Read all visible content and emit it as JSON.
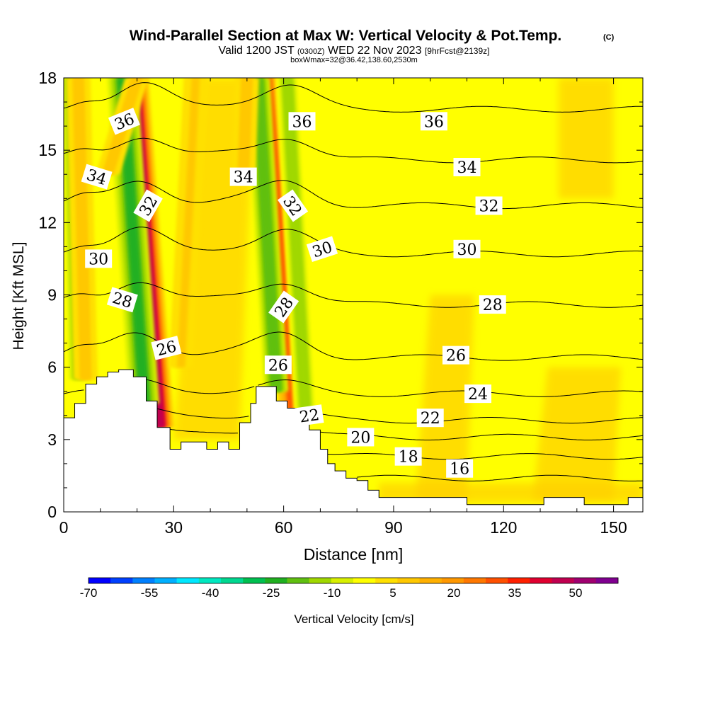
{
  "chart_data": {
    "type": "heatmap",
    "title": "Wind-Parallel Section at Max W: Vertical Velocity & Pot.Temp.",
    "title_mark": "(C)",
    "subtitle_parts": [
      "Valid 1200 JST",
      "(0300Z)",
      "WED 22 Nov 2023",
      "[9hrFcst@2139z]"
    ],
    "subtitle2": "boxWmax=32@36.42,138.60,2530m",
    "xlabel": "Distance [nm]",
    "ylabel": "Height [Kft MSL]",
    "xlim": [
      0,
      158
    ],
    "ylim": [
      0,
      18
    ],
    "x_ticks": [
      0,
      30,
      60,
      90,
      120,
      150
    ],
    "y_ticks": [
      0,
      3,
      6,
      9,
      12,
      15,
      18
    ],
    "colorbar": {
      "label": "Vertical Velocity [cm/s]",
      "tick_labels": [
        "-70",
        "-55",
        "-40",
        "-25",
        "-10",
        "5",
        "20",
        "35",
        "50"
      ],
      "colors": [
        "#0000ff",
        "#0040ff",
        "#0080ff",
        "#00b0ff",
        "#00e8ff",
        "#00e8c0",
        "#00d890",
        "#00c050",
        "#20b020",
        "#60c010",
        "#a0d800",
        "#d8f000",
        "#ffff00",
        "#ffe000",
        "#ffc800",
        "#ffb000",
        "#ff9800",
        "#ff7800",
        "#ff5000",
        "#ff2000",
        "#e00030",
        "#c00050",
        "#a00070",
        "#800090"
      ]
    },
    "terrain_profile": {
      "x": [
        0,
        3,
        3,
        6,
        6,
        9,
        9,
        12,
        12,
        15,
        15,
        19,
        19,
        22.5,
        22.5,
        25.5,
        25.5,
        29,
        29,
        32,
        32,
        35,
        35,
        39,
        39,
        42,
        42,
        45,
        45,
        48,
        48,
        51,
        51,
        52.5,
        52.5,
        55,
        55,
        58,
        58,
        61,
        61,
        64,
        64,
        67,
        67,
        70,
        70,
        72,
        72,
        74,
        74,
        77,
        77,
        80,
        80,
        83,
        83,
        86,
        86,
        110,
        110,
        131,
        131,
        142,
        142,
        154,
        154,
        158
      ],
      "y": [
        3.9,
        3.9,
        4.5,
        4.5,
        5.3,
        5.3,
        5.6,
        5.6,
        5.8,
        5.8,
        5.9,
        5.9,
        5.6,
        5.6,
        4.6,
        4.6,
        3.5,
        3.5,
        2.6,
        2.6,
        2.9,
        2.9,
        2.9,
        2.9,
        2.6,
        2.6,
        2.9,
        2.9,
        2.6,
        2.6,
        3.7,
        3.7,
        4.5,
        4.5,
        5.2,
        5.2,
        5.2,
        5.2,
        4.6,
        4.6,
        4.3,
        4.3,
        3.8,
        3.8,
        3.4,
        3.4,
        2.6,
        2.6,
        2.0,
        2.0,
        1.7,
        1.7,
        1.4,
        1.4,
        1.3,
        1.3,
        0.9,
        0.9,
        0.6,
        0.6,
        0.3,
        0.3,
        0.6,
        0.6,
        0.3,
        0.3,
        0.6,
        0.6
      ]
    },
    "wave_bands": [
      {
        "sign": "up",
        "strength": 48,
        "x_bottom": 26,
        "x_top": 19,
        "y_range": [
          3.5,
          18
        ]
      },
      {
        "sign": "down",
        "strength": -22,
        "x_bottom": 22,
        "x_top": 16,
        "y_range": [
          4.5,
          18
        ]
      },
      {
        "sign": "down",
        "strength": -12,
        "x_bottom": 4,
        "x_top": 2,
        "y_range": [
          5.5,
          18
        ]
      },
      {
        "sign": "up",
        "strength": 12,
        "x_bottom": 6,
        "x_top": 4,
        "y_range": [
          5.5,
          18
        ]
      },
      {
        "sign": "up",
        "strength": 30,
        "x_bottom": 63,
        "x_top": 55,
        "y_range": [
          4,
          18
        ]
      },
      {
        "sign": "down",
        "strength": -20,
        "x_bottom": 58,
        "x_top": 53,
        "y_range": [
          5,
          18
        ]
      },
      {
        "sign": "down",
        "strength": -12,
        "x_bottom": 66,
        "x_top": 61,
        "y_range": [
          4,
          18
        ]
      },
      {
        "sign": "up",
        "strength": 12,
        "x_bottom": 12,
        "x_top": 20,
        "y_range": [
          14,
          18
        ]
      },
      {
        "sign": "up",
        "strength": 8,
        "x_bottom": 32,
        "x_top": 36,
        "y_range": [
          6,
          18
        ]
      },
      {
        "sign": "up",
        "strength": 10,
        "x_bottom": 49,
        "x_top": 50,
        "y_range": [
          14,
          18
        ]
      }
    ],
    "isentropes": [
      {
        "theta": 16,
        "y": 1.4
      },
      {
        "theta": 18,
        "y": 2.3
      },
      {
        "theta": 20,
        "y": 3.1
      },
      {
        "theta": 22,
        "y": 3.8
      },
      {
        "theta": 24,
        "y": 4.9
      },
      {
        "theta": 26,
        "y": 6.4
      },
      {
        "theta": 28,
        "y": 8.6
      },
      {
        "theta": 30,
        "y": 10.7
      },
      {
        "theta": 32,
        "y": 12.7
      },
      {
        "theta": 34,
        "y": 14.6
      },
      {
        "theta": 36,
        "y": 16.7
      }
    ],
    "contour_labels": [
      {
        "text": "36",
        "x": 16.5,
        "y": 16.2,
        "rot": -22
      },
      {
        "text": "34",
        "x": 9,
        "y": 13.9,
        "rot": 17
      },
      {
        "text": "30",
        "x": 9.5,
        "y": 10.5,
        "rot": 0
      },
      {
        "text": "28",
        "x": 16,
        "y": 8.8,
        "rot": 17
      },
      {
        "text": "32",
        "x": 23,
        "y": 12.7,
        "rot": -60
      },
      {
        "text": "26",
        "x": 28,
        "y": 6.8,
        "rot": -14
      },
      {
        "text": "34",
        "x": 49,
        "y": 13.9,
        "rot": 0
      },
      {
        "text": "36",
        "x": 65,
        "y": 16.2,
        "rot": 0
      },
      {
        "text": "32",
        "x": 62.5,
        "y": 12.7,
        "rot": 55
      },
      {
        "text": "30",
        "x": 70.5,
        "y": 10.9,
        "rot": -18
      },
      {
        "text": "28",
        "x": 60,
        "y": 8.5,
        "rot": -55
      },
      {
        "text": "26",
        "x": 58.5,
        "y": 6.1,
        "rot": 0
      },
      {
        "text": "22",
        "x": 67,
        "y": 4.0,
        "rot": -8
      },
      {
        "text": "36",
        "x": 101,
        "y": 16.2,
        "rot": 0
      },
      {
        "text": "34",
        "x": 110,
        "y": 14.3,
        "rot": 0
      },
      {
        "text": "32",
        "x": 116,
        "y": 12.7,
        "rot": 0
      },
      {
        "text": "30",
        "x": 110,
        "y": 10.9,
        "rot": 0
      },
      {
        "text": "28",
        "x": 117,
        "y": 8.6,
        "rot": 0
      },
      {
        "text": "26",
        "x": 107,
        "y": 6.5,
        "rot": 0
      },
      {
        "text": "24",
        "x": 113,
        "y": 4.9,
        "rot": 0
      },
      {
        "text": "22",
        "x": 100,
        "y": 3.9,
        "rot": 0
      },
      {
        "text": "20",
        "x": 81,
        "y": 3.1,
        "rot": 0
      },
      {
        "text": "18",
        "x": 94,
        "y": 2.3,
        "rot": 0
      },
      {
        "text": "16",
        "x": 108,
        "y": 1.8,
        "rot": 0
      }
    ]
  }
}
